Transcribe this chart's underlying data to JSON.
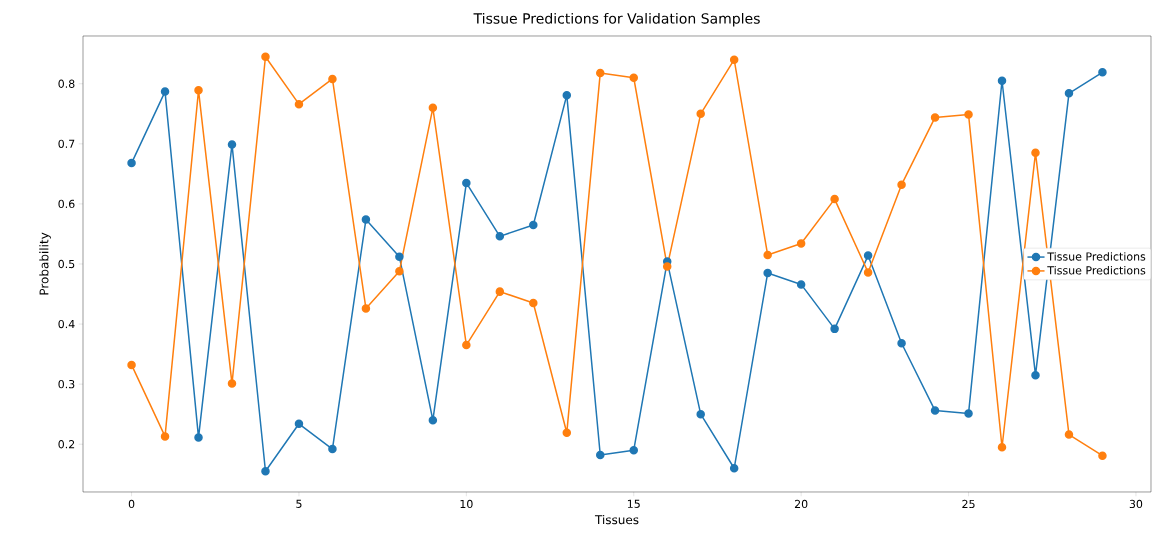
{
  "chart_data": {
    "type": "line",
    "title": "Tissue Predictions for Validation Samples",
    "xlabel": "Tissues",
    "ylabel": "Probability",
    "x": [
      0,
      1,
      2,
      3,
      4,
      5,
      6,
      7,
      8,
      9,
      10,
      11,
      12,
      13,
      14,
      15,
      16,
      17,
      18,
      19,
      20,
      21,
      22,
      23,
      24,
      25,
      26,
      27,
      28,
      29
    ],
    "series": [
      {
        "name": "Tissue Predictions",
        "color": "#1f77b4",
        "values": [
          0.668,
          0.787,
          0.211,
          0.699,
          0.155,
          0.234,
          0.192,
          0.574,
          0.512,
          0.24,
          0.635,
          0.546,
          0.565,
          0.781,
          0.182,
          0.19,
          0.504,
          0.25,
          0.16,
          0.485,
          0.466,
          0.392,
          0.514,
          0.368,
          0.256,
          0.251,
          0.805,
          0.315,
          0.784,
          0.819
        ]
      },
      {
        "name": "Tissue Predictions",
        "color": "#ff7f0e",
        "values": [
          0.332,
          0.213,
          0.789,
          0.301,
          0.845,
          0.766,
          0.808,
          0.426,
          0.488,
          0.76,
          0.365,
          0.454,
          0.435,
          0.219,
          0.818,
          0.81,
          0.496,
          0.75,
          0.84,
          0.515,
          0.534,
          0.608,
          0.486,
          0.632,
          0.744,
          0.749,
          0.195,
          0.685,
          0.216,
          0.181
        ]
      }
    ],
    "xlim": [
      -1.45,
      30.45
    ],
    "ylim": [
      0.1205,
      0.8795
    ],
    "xticks": [
      0,
      5,
      10,
      15,
      20,
      25,
      30
    ],
    "yticks": [
      0.2,
      0.3,
      0.4,
      0.5,
      0.6,
      0.7,
      0.8
    ],
    "legend": "right",
    "marker": "circle",
    "line_style": "solid",
    "grid": false
  }
}
